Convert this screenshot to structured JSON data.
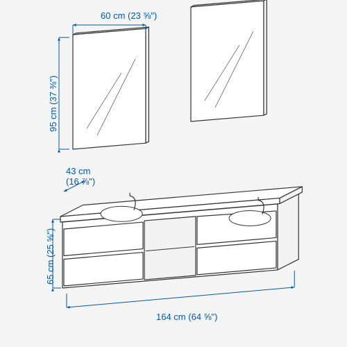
{
  "colors": {
    "dim_stroke": "#0058a3",
    "dim_text": "#0058a3",
    "line_stroke": "#333333",
    "fill_white": "#ffffff",
    "fill_light": "#f2f2f2",
    "bg": "#f4f4f4"
  },
  "dimensions": {
    "mirror_width": {
      "cm": "60 cm",
      "in": "(23 ⅝\")"
    },
    "mirror_height": {
      "cm": "95 cm",
      "in": "(37 ⅜\")"
    },
    "unit_depth": {
      "cm": "43 cm",
      "in": "(16 ⅞\")"
    },
    "unit_height": {
      "cm": "65 cm",
      "in": "(25 ⅝\")"
    },
    "unit_width": {
      "cm": "164 cm",
      "in": "(64 ⅝\")"
    }
  },
  "geometry": {
    "iso_skew_x": 0.55,
    "iso_skew_y": -0.28,
    "stroke_width": 1.2,
    "dim_stroke_width": 1.0,
    "arrow_size": 5
  }
}
